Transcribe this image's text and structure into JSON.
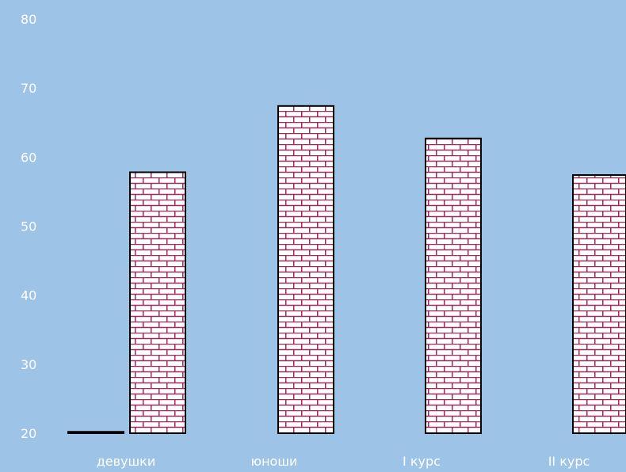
{
  "chart_data": {
    "type": "bar",
    "categories": [
      "девушки",
      "юноши",
      "I курс",
      "II курс"
    ],
    "series": [
      {
        "pattern": "diagonal-stripe",
        "values": [
          20.2,
          null,
          null,
          null
        ]
      },
      {
        "pattern": "brick",
        "values": [
          57.8,
          67.4,
          62.7,
          57.4
        ]
      }
    ],
    "ylim": [
      20,
      80
    ],
    "yticks": [
      "20",
      "30",
      "40",
      "50",
      "60",
      "70",
      "80"
    ],
    "title": "",
    "xlabel": "",
    "ylabel": "",
    "grid": false
  },
  "colors": {
    "background": "#9dc3e6",
    "text": "#ffffff",
    "brick_fill": "#ffffff",
    "brick_mortar": "#9b2a5e",
    "outline": "#000000",
    "stripe_dark": "#2a3f66"
  }
}
